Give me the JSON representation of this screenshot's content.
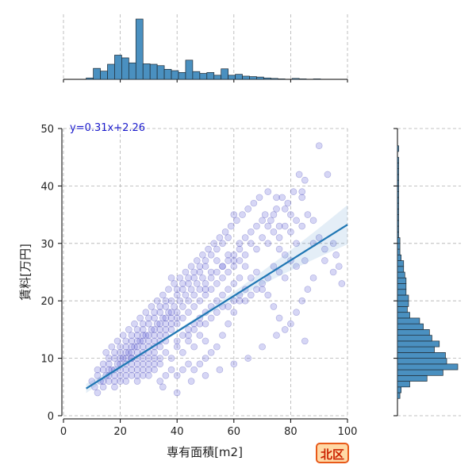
{
  "chart_data": {
    "type": "scatter",
    "title": "",
    "xlabel": "専有面積[m2]",
    "ylabel": "賃料[万円]",
    "xlim": [
      0,
      100
    ],
    "ylim": [
      0,
      50
    ],
    "x_ticks": [
      "0",
      "20",
      "40",
      "60",
      "80",
      "100"
    ],
    "y_ticks": [
      "0",
      "10",
      "20",
      "30",
      "40",
      "50"
    ],
    "grid": true,
    "regression": {
      "equation": "y=0.31x+2.26",
      "slope": 0.31,
      "intercept": 2.26,
      "x_range": [
        8,
        100
      ]
    },
    "badge": "北区",
    "x_hist": {
      "bin_start": 8,
      "bin_width": 2.5,
      "counts": [
        3,
        24,
        18,
        33,
        53,
        47,
        36,
        132,
        34,
        33,
        30,
        22,
        19,
        15,
        42,
        17,
        13,
        15,
        9,
        23,
        9,
        11,
        7,
        6,
        5,
        3,
        2,
        1,
        0,
        2,
        1,
        0,
        1,
        0
      ]
    },
    "y_hist": {
      "bin_start": 3,
      "bin_width": 1,
      "counts": [
        2,
        3,
        10,
        24,
        37,
        49,
        40,
        39,
        30,
        34,
        28,
        26,
        21,
        18,
        10,
        8,
        9,
        9,
        7,
        7,
        7,
        6,
        5,
        5,
        3,
        2,
        2,
        2,
        1,
        1,
        1,
        1,
        1,
        1,
        1,
        1,
        1,
        1,
        1,
        1,
        1,
        1,
        0,
        1,
        0
      ]
    },
    "points": [
      [
        10,
        6
      ],
      [
        11,
        5
      ],
      [
        12,
        7
      ],
      [
        13,
        6
      ],
      [
        14,
        8
      ],
      [
        15,
        7
      ],
      [
        16,
        9
      ],
      [
        17,
        8
      ],
      [
        18,
        10
      ],
      [
        19,
        9
      ],
      [
        20,
        11
      ],
      [
        21,
        10
      ],
      [
        22,
        12
      ],
      [
        23,
        11
      ],
      [
        24,
        13
      ],
      [
        25,
        12
      ],
      [
        26,
        14
      ],
      [
        27,
        13
      ],
      [
        28,
        15
      ],
      [
        29,
        14
      ],
      [
        30,
        16
      ],
      [
        31,
        15
      ],
      [
        32,
        17
      ],
      [
        33,
        16
      ],
      [
        34,
        18
      ],
      [
        35,
        17
      ],
      [
        36,
        19
      ],
      [
        37,
        18
      ],
      [
        38,
        20
      ],
      [
        39,
        19
      ],
      [
        40,
        21
      ],
      [
        41,
        20
      ],
      [
        42,
        22
      ],
      [
        43,
        21
      ],
      [
        44,
        23
      ],
      [
        45,
        22
      ],
      [
        46,
        24
      ],
      [
        47,
        23
      ],
      [
        48,
        25
      ],
      [
        49,
        24
      ],
      [
        50,
        26
      ],
      [
        52,
        25
      ],
      [
        54,
        27
      ],
      [
        56,
        26
      ],
      [
        58,
        28
      ],
      [
        60,
        27
      ],
      [
        62,
        29
      ],
      [
        64,
        28
      ],
      [
        66,
        30
      ],
      [
        68,
        29
      ],
      [
        70,
        31
      ],
      [
        72,
        30
      ],
      [
        74,
        32
      ],
      [
        76,
        31
      ],
      [
        78,
        33
      ],
      [
        80,
        32
      ],
      [
        82,
        34
      ],
      [
        84,
        33
      ],
      [
        86,
        35
      ],
      [
        88,
        34
      ],
      [
        12,
        4
      ],
      [
        14,
        5
      ],
      [
        16,
        6
      ],
      [
        18,
        5
      ],
      [
        20,
        7
      ],
      [
        22,
        6
      ],
      [
        24,
        8
      ],
      [
        26,
        7
      ],
      [
        28,
        9
      ],
      [
        30,
        8
      ],
      [
        32,
        10
      ],
      [
        34,
        9
      ],
      [
        36,
        11
      ],
      [
        38,
        10
      ],
      [
        40,
        12
      ],
      [
        42,
        11
      ],
      [
        44,
        13
      ],
      [
        46,
        12
      ],
      [
        48,
        14
      ],
      [
        50,
        13
      ],
      [
        15,
        11
      ],
      [
        17,
        12
      ],
      [
        19,
        13
      ],
      [
        21,
        14
      ],
      [
        23,
        15
      ],
      [
        25,
        16
      ],
      [
        27,
        17
      ],
      [
        29,
        18
      ],
      [
        31,
        19
      ],
      [
        33,
        20
      ],
      [
        35,
        21
      ],
      [
        37,
        22
      ],
      [
        39,
        23
      ],
      [
        41,
        24
      ],
      [
        43,
        25
      ],
      [
        45,
        26
      ],
      [
        47,
        27
      ],
      [
        49,
        28
      ],
      [
        51,
        29
      ],
      [
        53,
        30
      ],
      [
        55,
        31
      ],
      [
        57,
        32
      ],
      [
        59,
        33
      ],
      [
        61,
        34
      ],
      [
        63,
        35
      ],
      [
        65,
        36
      ],
      [
        67,
        37
      ],
      [
        69,
        38
      ],
      [
        71,
        35
      ],
      [
        73,
        34
      ],
      [
        75,
        36
      ],
      [
        77,
        38
      ],
      [
        79,
        37
      ],
      [
        81,
        39
      ],
      [
        83,
        42
      ],
      [
        85,
        41
      ],
      [
        90,
        47
      ],
      [
        93,
        42
      ],
      [
        95,
        25
      ],
      [
        98,
        23
      ],
      [
        96,
        28
      ],
      [
        92,
        27
      ],
      [
        88,
        24
      ],
      [
        86,
        22
      ],
      [
        84,
        20
      ],
      [
        82,
        18
      ],
      [
        80,
        16
      ],
      [
        78,
        15
      ],
      [
        76,
        17
      ],
      [
        74,
        19
      ],
      [
        72,
        21
      ],
      [
        70,
        23
      ],
      [
        68,
        25
      ],
      [
        66,
        24
      ],
      [
        64,
        22
      ],
      [
        62,
        20
      ],
      [
        60,
        18
      ],
      [
        58,
        16
      ],
      [
        56,
        14
      ],
      [
        54,
        12
      ],
      [
        52,
        11
      ],
      [
        50,
        10
      ],
      [
        48,
        9
      ],
      [
        46,
        8
      ],
      [
        44,
        9
      ],
      [
        42,
        8
      ],
      [
        40,
        7
      ],
      [
        38,
        8
      ],
      [
        36,
        7
      ],
      [
        34,
        6
      ],
      [
        26,
        9
      ],
      [
        28,
        10
      ],
      [
        30,
        11
      ],
      [
        32,
        12
      ],
      [
        34,
        13
      ],
      [
        36,
        14
      ],
      [
        38,
        15
      ],
      [
        40,
        16
      ],
      [
        42,
        17
      ],
      [
        44,
        18
      ],
      [
        46,
        19
      ],
      [
        48,
        20
      ],
      [
        50,
        21
      ],
      [
        52,
        22
      ],
      [
        54,
        23
      ],
      [
        56,
        24
      ],
      [
        58,
        25
      ],
      [
        60,
        26
      ],
      [
        62,
        27
      ],
      [
        64,
        26
      ],
      [
        24,
        10
      ],
      [
        26,
        11
      ],
      [
        28,
        12
      ],
      [
        30,
        13
      ],
      [
        32,
        14
      ],
      [
        34,
        15
      ],
      [
        36,
        16
      ],
      [
        38,
        17
      ],
      [
        40,
        18
      ],
      [
        42,
        19
      ],
      [
        22,
        9
      ],
      [
        24,
        12
      ],
      [
        26,
        13
      ],
      [
        28,
        11
      ],
      [
        30,
        14
      ],
      [
        32,
        13
      ],
      [
        34,
        16
      ],
      [
        36,
        15
      ],
      [
        38,
        18
      ],
      [
        40,
        17
      ],
      [
        20,
        8
      ],
      [
        22,
        8
      ],
      [
        24,
        9
      ],
      [
        26,
        10
      ],
      [
        28,
        13
      ],
      [
        30,
        12
      ],
      [
        32,
        11
      ],
      [
        34,
        14
      ],
      [
        36,
        13
      ],
      [
        38,
        16
      ],
      [
        18,
        7
      ],
      [
        20,
        9
      ],
      [
        22,
        10
      ],
      [
        24,
        11
      ],
      [
        26,
        12
      ],
      [
        28,
        14
      ],
      [
        30,
        10
      ],
      [
        32,
        15
      ],
      [
        34,
        12
      ],
      [
        36,
        17
      ],
      [
        16,
        7
      ],
      [
        18,
        8
      ],
      [
        20,
        10
      ],
      [
        22,
        11
      ],
      [
        24,
        10
      ],
      [
        26,
        8
      ],
      [
        28,
        8
      ],
      [
        30,
        9
      ],
      [
        32,
        9
      ],
      [
        34,
        10
      ],
      [
        14,
        6
      ],
      [
        16,
        8
      ],
      [
        18,
        6
      ],
      [
        20,
        6
      ],
      [
        22,
        7
      ],
      [
        24,
        7
      ],
      [
        26,
        6
      ],
      [
        28,
        7
      ],
      [
        30,
        7
      ],
      [
        32,
        8
      ],
      [
        44,
        15
      ],
      [
        46,
        16
      ],
      [
        48,
        17
      ],
      [
        50,
        18
      ],
      [
        52,
        19
      ],
      [
        54,
        20
      ],
      [
        56,
        21
      ],
      [
        58,
        22
      ],
      [
        60,
        23
      ],
      [
        62,
        24
      ],
      [
        44,
        20
      ],
      [
        46,
        21
      ],
      [
        48,
        22
      ],
      [
        50,
        23
      ],
      [
        52,
        24
      ],
      [
        54,
        25
      ],
      [
        56,
        26
      ],
      [
        58,
        27
      ],
      [
        60,
        28
      ],
      [
        62,
        30
      ],
      [
        64,
        31
      ],
      [
        66,
        32
      ],
      [
        68,
        33
      ],
      [
        70,
        34
      ],
      [
        72,
        33
      ],
      [
        74,
        35
      ],
      [
        76,
        29
      ],
      [
        78,
        28
      ],
      [
        80,
        27
      ],
      [
        82,
        26
      ],
      [
        84,
        39
      ],
      [
        84,
        38
      ],
      [
        75,
        38
      ],
      [
        72,
        39
      ],
      [
        60,
        35
      ],
      [
        58,
        31
      ],
      [
        56,
        30
      ],
      [
        54,
        29
      ],
      [
        52,
        28
      ],
      [
        50,
        27
      ],
      [
        40,
        13
      ],
      [
        42,
        14
      ],
      [
        44,
        14
      ],
      [
        46,
        15
      ],
      [
        48,
        16
      ],
      [
        50,
        16
      ],
      [
        52,
        17
      ],
      [
        54,
        18
      ],
      [
        56,
        19
      ],
      [
        58,
        19
      ],
      [
        60,
        20
      ],
      [
        62,
        21
      ],
      [
        64,
        20
      ],
      [
        66,
        21
      ],
      [
        68,
        22
      ],
      [
        70,
        22
      ],
      [
        72,
        24
      ],
      [
        74,
        26
      ],
      [
        76,
        25
      ],
      [
        78,
        24
      ],
      [
        40,
        22
      ],
      [
        42,
        23
      ],
      [
        44,
        24
      ],
      [
        46,
        25
      ],
      [
        48,
        26
      ],
      [
        50,
        22
      ],
      [
        38,
        24
      ],
      [
        36,
        20
      ],
      [
        34,
        19
      ],
      [
        32,
        18
      ],
      [
        30,
        17
      ],
      [
        28,
        16
      ],
      [
        26,
        15
      ],
      [
        24,
        14
      ],
      [
        22,
        13
      ],
      [
        20,
        12
      ],
      [
        18,
        11
      ],
      [
        16,
        10
      ],
      [
        14,
        9
      ],
      [
        12,
        8
      ],
      [
        35,
        5
      ],
      [
        40,
        4
      ],
      [
        45,
        6
      ],
      [
        50,
        7
      ],
      [
        55,
        8
      ],
      [
        60,
        9
      ],
      [
        65,
        10
      ],
      [
        70,
        12
      ],
      [
        75,
        14
      ],
      [
        85,
        13
      ],
      [
        88,
        30
      ],
      [
        90,
        31
      ],
      [
        92,
        29
      ],
      [
        95,
        30
      ],
      [
        97,
        26
      ],
      [
        85,
        27
      ],
      [
        80,
        35
      ],
      [
        82,
        30
      ],
      [
        78,
        36
      ],
      [
        76,
        33
      ]
    ]
  }
}
